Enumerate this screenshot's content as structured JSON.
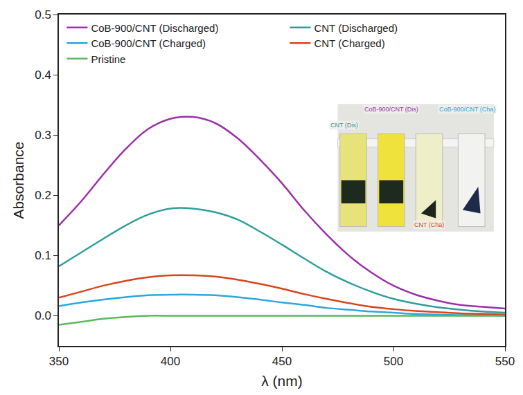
{
  "chart_data": {
    "type": "line",
    "x_label": "λ (nm)",
    "y_label": "Absorbance",
    "x": [
      350,
      360,
      370,
      380,
      390,
      400,
      410,
      420,
      430,
      440,
      450,
      460,
      470,
      480,
      490,
      500,
      510,
      520,
      530,
      540,
      550
    ],
    "series": [
      {
        "name": "CoB-900/CNT (Discharged)",
        "color": "#9b30a8",
        "values": [
          0.15,
          0.19,
          0.235,
          0.277,
          0.31,
          0.327,
          0.33,
          0.32,
          0.295,
          0.26,
          0.22,
          0.175,
          0.135,
          0.1,
          0.072,
          0.05,
          0.035,
          0.025,
          0.018,
          0.015,
          0.012
        ]
      },
      {
        "name": "CNT (Discharged)",
        "color": "#2e9e9a",
        "values": [
          0.082,
          0.105,
          0.128,
          0.15,
          0.168,
          0.178,
          0.178,
          0.172,
          0.16,
          0.14,
          0.118,
          0.095,
          0.073,
          0.055,
          0.04,
          0.028,
          0.02,
          0.014,
          0.01,
          0.007,
          0.005
        ]
      },
      {
        "name": "CoB-900/CNT (Charged)",
        "color": "#2aa7de",
        "values": [
          0.016,
          0.022,
          0.027,
          0.031,
          0.034,
          0.035,
          0.035,
          0.034,
          0.031,
          0.027,
          0.022,
          0.018,
          0.013,
          0.01,
          0.007,
          0.005,
          0.003,
          0.002,
          0.001,
          0.001,
          0.0
        ]
      },
      {
        "name": "CNT (Charged)",
        "color": "#d9441c",
        "values": [
          0.03,
          0.04,
          0.05,
          0.058,
          0.064,
          0.067,
          0.067,
          0.065,
          0.06,
          0.053,
          0.045,
          0.036,
          0.028,
          0.021,
          0.015,
          0.011,
          0.008,
          0.006,
          0.004,
          0.003,
          0.002
        ]
      },
      {
        "name": "Pristine",
        "color": "#5cb85c",
        "values": [
          -0.015,
          -0.01,
          -0.005,
          -0.002,
          0.0,
          0.0,
          0.0,
          0.0,
          0.0,
          0.0,
          0.0,
          0.0,
          0.0,
          0.0,
          0.0,
          0.0,
          0.0,
          0.0,
          0.0,
          0.0,
          0.0
        ]
      }
    ],
    "xlim": [
      350,
      550
    ],
    "xticks": [
      350,
      400,
      450,
      500,
      550
    ],
    "ylim": [
      -0.05,
      0.5
    ],
    "yticks": [
      {
        "value": 0,
        "label": "0.0"
      },
      0.1,
      0.2,
      0.3,
      0.4,
      0.5
    ],
    "grid": false,
    "legend": "top",
    "annotations": [
      {
        "text": "CNT (Dis)",
        "color": "#2e9e9a"
      },
      {
        "text": "CoB-900/CNT (Dis)",
        "color": "#9b30a8"
      },
      {
        "text": "CNT (Cha)",
        "color": "#d9441c"
      },
      {
        "text": "CoB-900/CNT (Cha)",
        "color": "#2aa7de"
      }
    ]
  }
}
